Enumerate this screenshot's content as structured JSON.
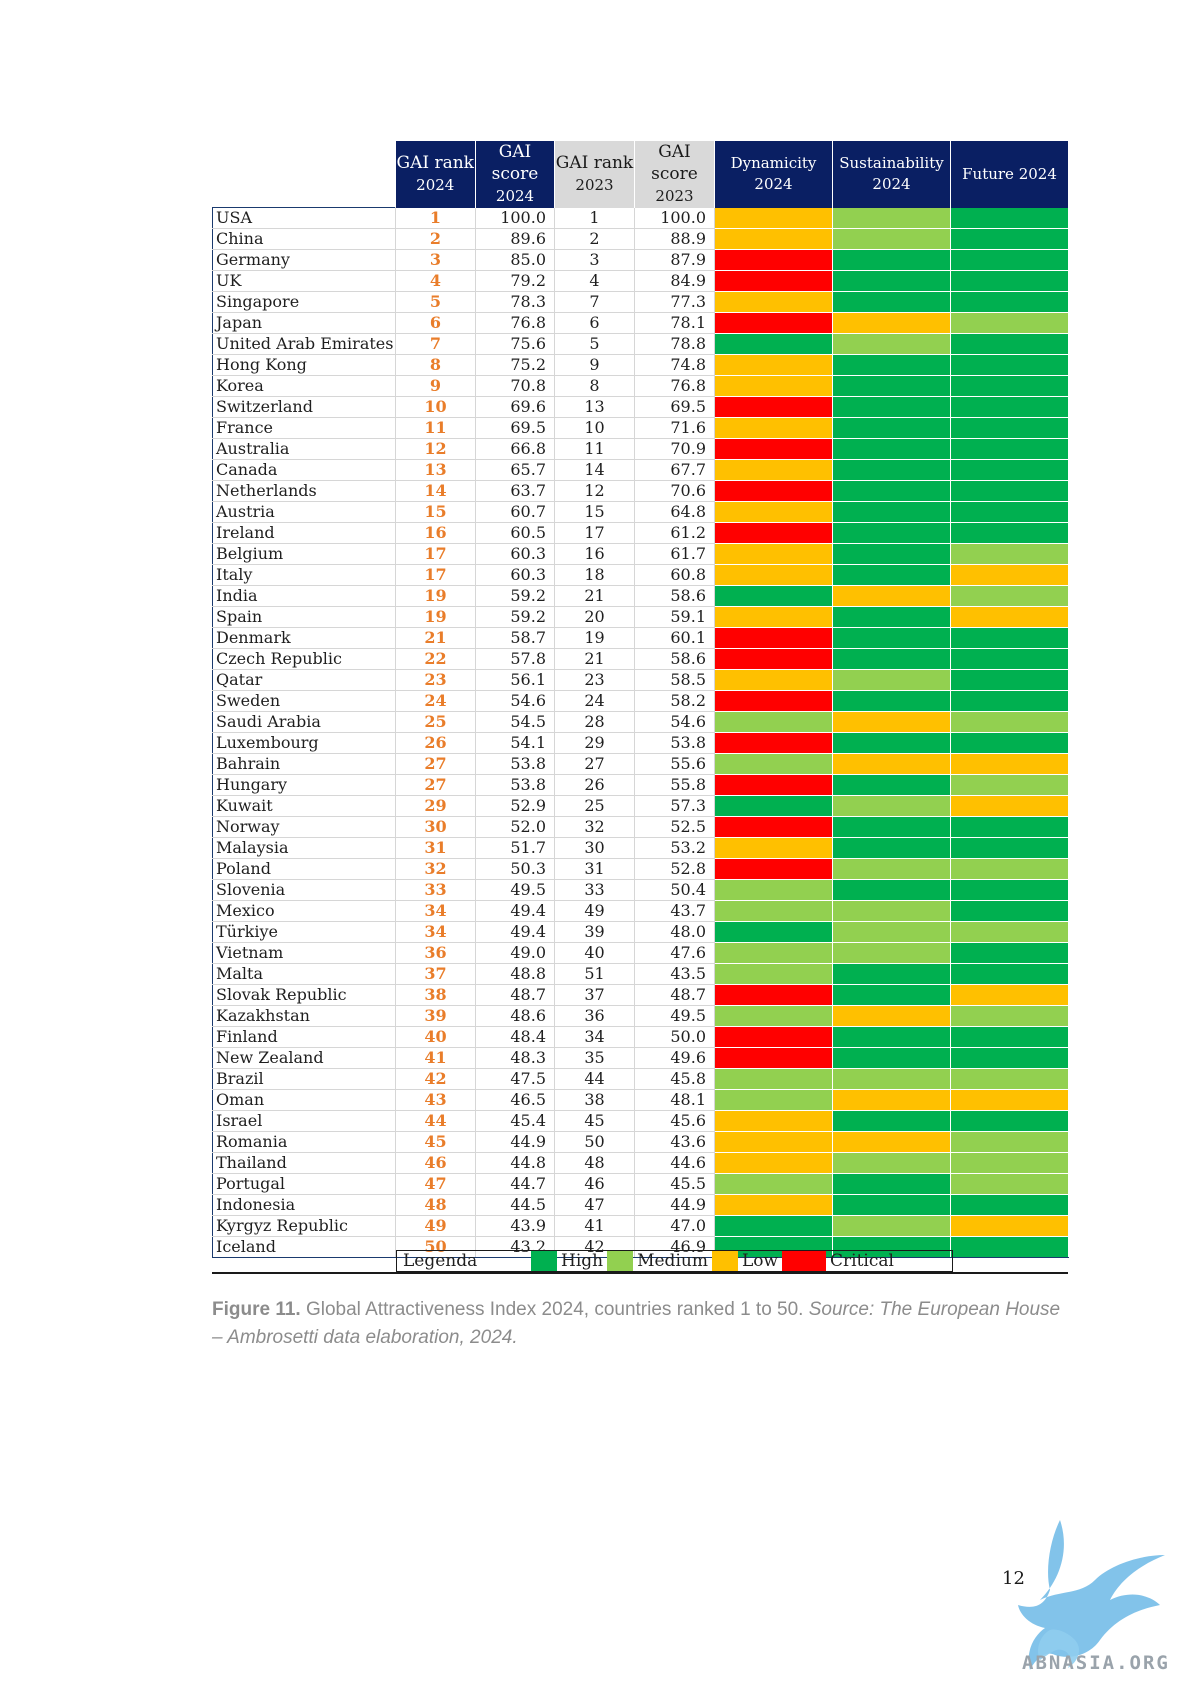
{
  "table": {
    "headers": [
      {
        "line1": "GAI rank",
        "line2": "2024",
        "style": "dark"
      },
      {
        "line1": "GAI score",
        "line2": "2024",
        "style": "dark"
      },
      {
        "line1": "GAI rank",
        "line2": "2023",
        "style": "grey"
      },
      {
        "line1": "GAI score",
        "line2": "2023",
        "style": "grey"
      },
      {
        "line1": "Dynamicity",
        "line2": "2024",
        "style": "indicator"
      },
      {
        "line1": "Sustainability",
        "line2": "2024",
        "style": "indicator"
      },
      {
        "line1": "Future 2024",
        "line2": "",
        "style": "indicator"
      }
    ],
    "rows": [
      {
        "country": "USA",
        "rank_2024": "1",
        "score_2024": "100.0",
        "rank_2023": "1",
        "score_2023": "100.0",
        "dynamicity": "Low",
        "sustainability": "Medium",
        "future": "High"
      },
      {
        "country": "China",
        "rank_2024": "2",
        "score_2024": "89.6",
        "rank_2023": "2",
        "score_2023": "88.9",
        "dynamicity": "Low",
        "sustainability": "Medium",
        "future": "High"
      },
      {
        "country": "Germany",
        "rank_2024": "3",
        "score_2024": "85.0",
        "rank_2023": "3",
        "score_2023": "87.9",
        "dynamicity": "Critical",
        "sustainability": "High",
        "future": "High"
      },
      {
        "country": "UK",
        "rank_2024": "4",
        "score_2024": "79.2",
        "rank_2023": "4",
        "score_2023": "84.9",
        "dynamicity": "Critical",
        "sustainability": "High",
        "future": "High"
      },
      {
        "country": "Singapore",
        "rank_2024": "5",
        "score_2024": "78.3",
        "rank_2023": "7",
        "score_2023": "77.3",
        "dynamicity": "Low",
        "sustainability": "High",
        "future": "High"
      },
      {
        "country": "Japan",
        "rank_2024": "6",
        "score_2024": "76.8",
        "rank_2023": "6",
        "score_2023": "78.1",
        "dynamicity": "Critical",
        "sustainability": "Low",
        "future": "Medium"
      },
      {
        "country": "United Arab Emirates",
        "rank_2024": "7",
        "score_2024": "75.6",
        "rank_2023": "5",
        "score_2023": "78.8",
        "dynamicity": "High",
        "sustainability": "Medium",
        "future": "High"
      },
      {
        "country": "Hong Kong",
        "rank_2024": "8",
        "score_2024": "75.2",
        "rank_2023": "9",
        "score_2023": "74.8",
        "dynamicity": "Low",
        "sustainability": "High",
        "future": "High"
      },
      {
        "country": "Korea",
        "rank_2024": "9",
        "score_2024": "70.8",
        "rank_2023": "8",
        "score_2023": "76.8",
        "dynamicity": "Low",
        "sustainability": "High",
        "future": "High"
      },
      {
        "country": "Switzerland",
        "rank_2024": "10",
        "score_2024": "69.6",
        "rank_2023": "13",
        "score_2023": "69.5",
        "dynamicity": "Critical",
        "sustainability": "High",
        "future": "High"
      },
      {
        "country": "France",
        "rank_2024": "11",
        "score_2024": "69.5",
        "rank_2023": "10",
        "score_2023": "71.6",
        "dynamicity": "Low",
        "sustainability": "High",
        "future": "High"
      },
      {
        "country": "Australia",
        "rank_2024": "12",
        "score_2024": "66.8",
        "rank_2023": "11",
        "score_2023": "70.9",
        "dynamicity": "Critical",
        "sustainability": "High",
        "future": "High"
      },
      {
        "country": "Canada",
        "rank_2024": "13",
        "score_2024": "65.7",
        "rank_2023": "14",
        "score_2023": "67.7",
        "dynamicity": "Low",
        "sustainability": "High",
        "future": "High"
      },
      {
        "country": "Netherlands",
        "rank_2024": "14",
        "score_2024": "63.7",
        "rank_2023": "12",
        "score_2023": "70.6",
        "dynamicity": "Critical",
        "sustainability": "High",
        "future": "High"
      },
      {
        "country": "Austria",
        "rank_2024": "15",
        "score_2024": "60.7",
        "rank_2023": "15",
        "score_2023": "64.8",
        "dynamicity": "Low",
        "sustainability": "High",
        "future": "High"
      },
      {
        "country": "Ireland",
        "rank_2024": "16",
        "score_2024": "60.5",
        "rank_2023": "17",
        "score_2023": "61.2",
        "dynamicity": "Critical",
        "sustainability": "High",
        "future": "High"
      },
      {
        "country": "Belgium",
        "rank_2024": "17",
        "score_2024": "60.3",
        "rank_2023": "16",
        "score_2023": "61.7",
        "dynamicity": "Low",
        "sustainability": "High",
        "future": "Medium"
      },
      {
        "country": "Italy",
        "rank_2024": "17",
        "score_2024": "60.3",
        "rank_2023": "18",
        "score_2023": "60.8",
        "dynamicity": "Low",
        "sustainability": "High",
        "future": "Low"
      },
      {
        "country": "India",
        "rank_2024": "19",
        "score_2024": "59.2",
        "rank_2023": "21",
        "score_2023": "58.6",
        "dynamicity": "High",
        "sustainability": "Low",
        "future": "Medium"
      },
      {
        "country": "Spain",
        "rank_2024": "19",
        "score_2024": "59.2",
        "rank_2023": "20",
        "score_2023": "59.1",
        "dynamicity": "Low",
        "sustainability": "High",
        "future": "Low"
      },
      {
        "country": "Denmark",
        "rank_2024": "21",
        "score_2024": "58.7",
        "rank_2023": "19",
        "score_2023": "60.1",
        "dynamicity": "Critical",
        "sustainability": "High",
        "future": "High"
      },
      {
        "country": "Czech Republic",
        "rank_2024": "22",
        "score_2024": "57.8",
        "rank_2023": "21",
        "score_2023": "58.6",
        "dynamicity": "Critical",
        "sustainability": "High",
        "future": "High"
      },
      {
        "country": "Qatar",
        "rank_2024": "23",
        "score_2024": "56.1",
        "rank_2023": "23",
        "score_2023": "58.5",
        "dynamicity": "Low",
        "sustainability": "Medium",
        "future": "High"
      },
      {
        "country": "Sweden",
        "rank_2024": "24",
        "score_2024": "54.6",
        "rank_2023": "24",
        "score_2023": "58.2",
        "dynamicity": "Critical",
        "sustainability": "High",
        "future": "High"
      },
      {
        "country": "Saudi Arabia",
        "rank_2024": "25",
        "score_2024": "54.5",
        "rank_2023": "28",
        "score_2023": "54.6",
        "dynamicity": "Medium",
        "sustainability": "Low",
        "future": "Medium"
      },
      {
        "country": "Luxembourg",
        "rank_2024": "26",
        "score_2024": "54.1",
        "rank_2023": "29",
        "score_2023": "53.8",
        "dynamicity": "Critical",
        "sustainability": "High",
        "future": "High"
      },
      {
        "country": "Bahrain",
        "rank_2024": "27",
        "score_2024": "53.8",
        "rank_2023": "27",
        "score_2023": "55.6",
        "dynamicity": "Medium",
        "sustainability": "Low",
        "future": "Low"
      },
      {
        "country": "Hungary",
        "rank_2024": "27",
        "score_2024": "53.8",
        "rank_2023": "26",
        "score_2023": "55.8",
        "dynamicity": "Critical",
        "sustainability": "High",
        "future": "Medium"
      },
      {
        "country": "Kuwait",
        "rank_2024": "29",
        "score_2024": "52.9",
        "rank_2023": "25",
        "score_2023": "57.3",
        "dynamicity": "High",
        "sustainability": "Medium",
        "future": "Low"
      },
      {
        "country": "Norway",
        "rank_2024": "30",
        "score_2024": "52.0",
        "rank_2023": "32",
        "score_2023": "52.5",
        "dynamicity": "Critical",
        "sustainability": "High",
        "future": "High"
      },
      {
        "country": "Malaysia",
        "rank_2024": "31",
        "score_2024": "51.7",
        "rank_2023": "30",
        "score_2023": "53.2",
        "dynamicity": "Low",
        "sustainability": "High",
        "future": "High"
      },
      {
        "country": "Poland",
        "rank_2024": "32",
        "score_2024": "50.3",
        "rank_2023": "31",
        "score_2023": "52.8",
        "dynamicity": "Critical",
        "sustainability": "Medium",
        "future": "Medium"
      },
      {
        "country": "Slovenia",
        "rank_2024": "33",
        "score_2024": "49.5",
        "rank_2023": "33",
        "score_2023": "50.4",
        "dynamicity": "Medium",
        "sustainability": "High",
        "future": "High"
      },
      {
        "country": "Mexico",
        "rank_2024": "34",
        "score_2024": "49.4",
        "rank_2023": "49",
        "score_2023": "43.7",
        "dynamicity": "Medium",
        "sustainability": "Medium",
        "future": "High"
      },
      {
        "country": "Türkiye",
        "rank_2024": "34",
        "score_2024": "49.4",
        "rank_2023": "39",
        "score_2023": "48.0",
        "dynamicity": "High",
        "sustainability": "Medium",
        "future": "Medium"
      },
      {
        "country": "Vietnam",
        "rank_2024": "36",
        "score_2024": "49.0",
        "rank_2023": "40",
        "score_2023": "47.6",
        "dynamicity": "Medium",
        "sustainability": "Medium",
        "future": "High"
      },
      {
        "country": "Malta",
        "rank_2024": "37",
        "score_2024": "48.8",
        "rank_2023": "51",
        "score_2023": "43.5",
        "dynamicity": "Medium",
        "sustainability": "High",
        "future": "High"
      },
      {
        "country": "Slovak Republic",
        "rank_2024": "38",
        "score_2024": "48.7",
        "rank_2023": "37",
        "score_2023": "48.7",
        "dynamicity": "Critical",
        "sustainability": "High",
        "future": "Low"
      },
      {
        "country": "Kazakhstan",
        "rank_2024": "39",
        "score_2024": "48.6",
        "rank_2023": "36",
        "score_2023": "49.5",
        "dynamicity": "Medium",
        "sustainability": "Low",
        "future": "Medium"
      },
      {
        "country": "Finland",
        "rank_2024": "40",
        "score_2024": "48.4",
        "rank_2023": "34",
        "score_2023": "50.0",
        "dynamicity": "Critical",
        "sustainability": "High",
        "future": "High"
      },
      {
        "country": "New Zealand",
        "rank_2024": "41",
        "score_2024": "48.3",
        "rank_2023": "35",
        "score_2023": "49.6",
        "dynamicity": "Critical",
        "sustainability": "High",
        "future": "High"
      },
      {
        "country": "Brazil",
        "rank_2024": "42",
        "score_2024": "47.5",
        "rank_2023": "44",
        "score_2023": "45.8",
        "dynamicity": "Medium",
        "sustainability": "Medium",
        "future": "Medium"
      },
      {
        "country": "Oman",
        "rank_2024": "43",
        "score_2024": "46.5",
        "rank_2023": "38",
        "score_2023": "48.1",
        "dynamicity": "Medium",
        "sustainability": "Low",
        "future": "Low"
      },
      {
        "country": "Israel",
        "rank_2024": "44",
        "score_2024": "45.4",
        "rank_2023": "45",
        "score_2023": "45.6",
        "dynamicity": "Low",
        "sustainability": "High",
        "future": "High"
      },
      {
        "country": "Romania",
        "rank_2024": "45",
        "score_2024": "44.9",
        "rank_2023": "50",
        "score_2023": "43.6",
        "dynamicity": "Low",
        "sustainability": "Low",
        "future": "Medium"
      },
      {
        "country": "Thailand",
        "rank_2024": "46",
        "score_2024": "44.8",
        "rank_2023": "48",
        "score_2023": "44.6",
        "dynamicity": "Low",
        "sustainability": "Medium",
        "future": "Medium"
      },
      {
        "country": "Portugal",
        "rank_2024": "47",
        "score_2024": "44.7",
        "rank_2023": "46",
        "score_2023": "45.5",
        "dynamicity": "Medium",
        "sustainability": "High",
        "future": "Medium"
      },
      {
        "country": "Indonesia",
        "rank_2024": "48",
        "score_2024": "44.5",
        "rank_2023": "47",
        "score_2023": "44.9",
        "dynamicity": "Low",
        "sustainability": "High",
        "future": "High"
      },
      {
        "country": "Kyrgyz Republic",
        "rank_2024": "49",
        "score_2024": "43.9",
        "rank_2023": "41",
        "score_2023": "47.0",
        "dynamicity": "High",
        "sustainability": "Medium",
        "future": "Low"
      },
      {
        "country": "Iceland",
        "rank_2024": "50",
        "score_2024": "43.2",
        "rank_2023": "42",
        "score_2023": "46.9",
        "dynamicity": "High",
        "sustainability": "High",
        "future": "High"
      }
    ]
  },
  "legend": {
    "title": "Legenda",
    "items": [
      {
        "label": "High",
        "color": "#00b050"
      },
      {
        "label": "Medium",
        "color": "#92d050"
      },
      {
        "label": "Low",
        "color": "#ffc000"
      },
      {
        "label": "Critical",
        "color": "#ff0000"
      }
    ]
  },
  "colors": {
    "High": "#00b050",
    "Medium": "#92d050",
    "Low": "#ffc000",
    "Critical": "#ff0000",
    "header_dark": "#0a1f63",
    "header_grey": "#d9d9d9",
    "rank_orange": "#e97d2a"
  },
  "caption": {
    "figure": "Figure 11.",
    "text": "Global Attractiveness Index 2024, countries ranked 1 to 50.",
    "source": "Source: The European House – Ambrosetti data elaboration, 2024."
  },
  "page_number": "12",
  "watermark": {
    "text": "ABNASIA.ORG",
    "icon": "griffin-logo-icon"
  }
}
